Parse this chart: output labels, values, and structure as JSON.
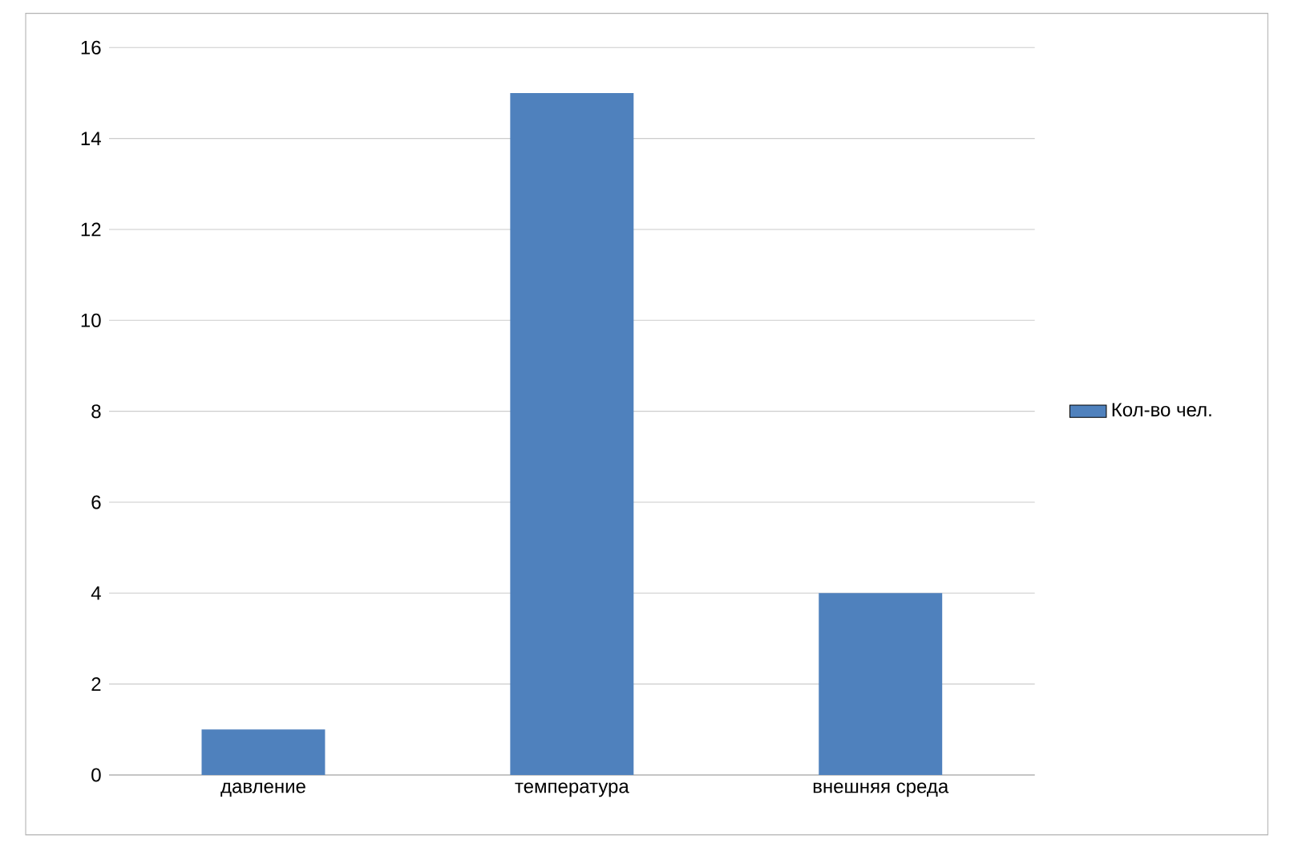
{
  "chart_data": {
    "type": "bar",
    "categories": [
      "давление",
      "температура",
      "внешняя среда"
    ],
    "series": [
      {
        "name": "Кол-во чел.",
        "color": "#4f81bd",
        "values": [
          1,
          15,
          4
        ]
      }
    ],
    "ylim": [
      0,
      16
    ],
    "yticks": [
      0,
      2,
      4,
      6,
      8,
      10,
      12,
      14,
      16
    ],
    "grid": "y",
    "legend": "right"
  }
}
